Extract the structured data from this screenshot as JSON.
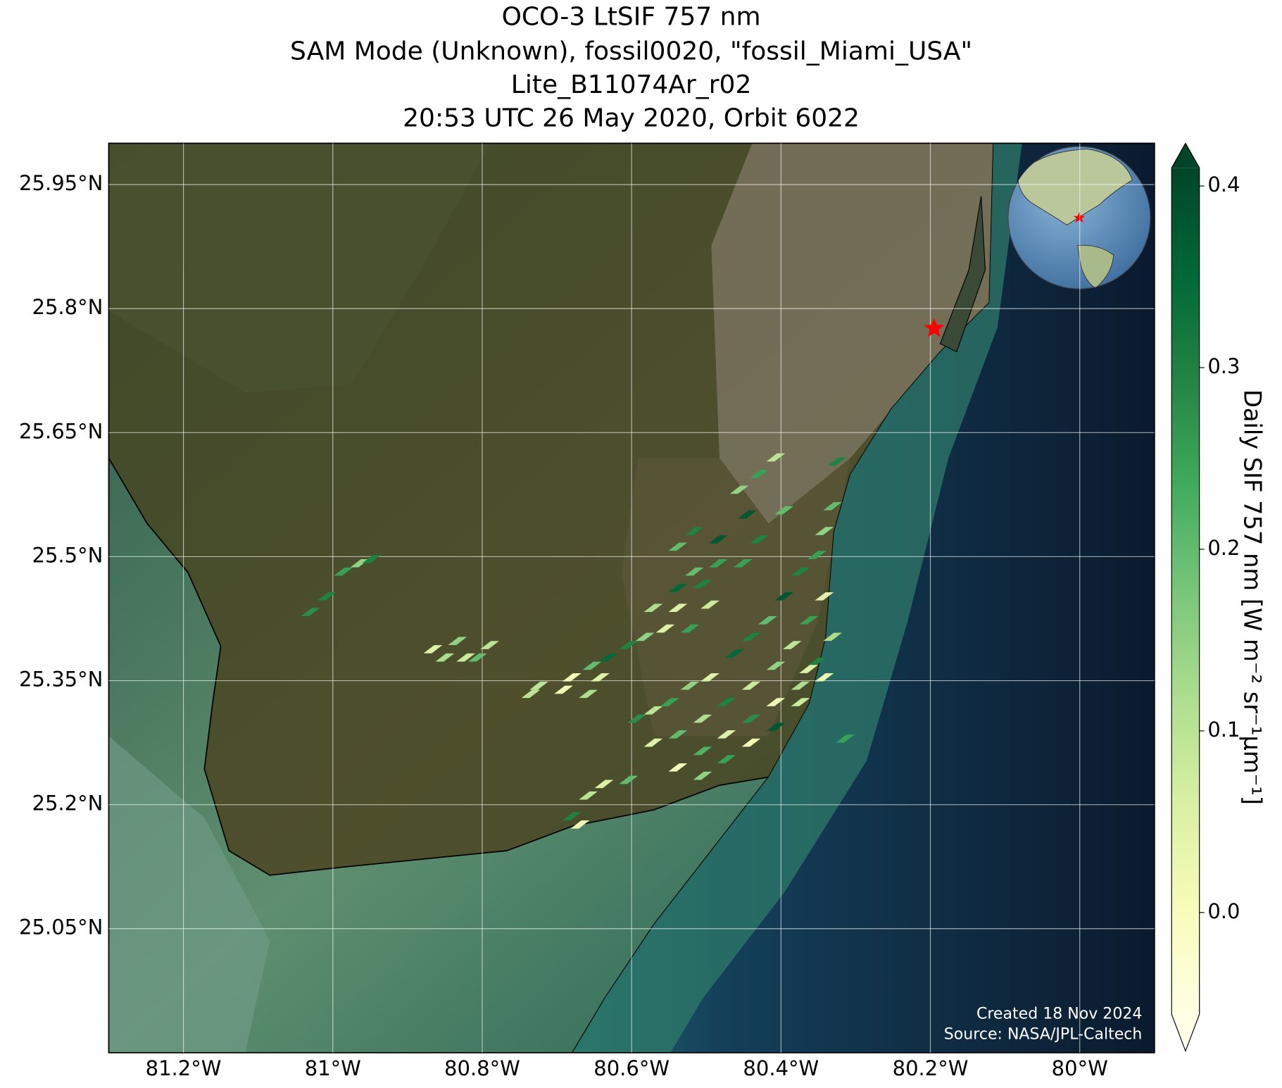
{
  "chart_data": {
    "type": "map",
    "title_lines": [
      "OCO-3 LtSIF 757 nm",
      "SAM Mode (Unknown), fossil0020, \"fossil_Miami_USA\"",
      "Lite_B11074Ar_r02",
      "20:53 UTC 26 May 2020, Orbit 6022"
    ],
    "xlim": [
      -81.3,
      -79.9
    ],
    "ylim": [
      24.9,
      26.0
    ],
    "xticks": [
      {
        "value": -81.2,
        "label": "81.2°W"
      },
      {
        "value": -81.0,
        "label": "81°W"
      },
      {
        "value": -80.8,
        "label": "80.8°W"
      },
      {
        "value": -80.6,
        "label": "80.6°W"
      },
      {
        "value": -80.4,
        "label": "80.4°W"
      },
      {
        "value": -80.2,
        "label": "80.2°W"
      },
      {
        "value": -80.0,
        "label": "80°W"
      }
    ],
    "yticks": [
      {
        "value": 25.05,
        "label": "25.05°N"
      },
      {
        "value": 25.2,
        "label": "25.2°N"
      },
      {
        "value": 25.35,
        "label": "25.35°N"
      },
      {
        "value": 25.5,
        "label": "25.5°N"
      },
      {
        "value": 25.65,
        "label": "25.65°N"
      },
      {
        "value": 25.8,
        "label": "25.8°N"
      },
      {
        "value": 25.95,
        "label": "25.95°N"
      }
    ],
    "grid": true,
    "colorbar": {
      "label": "Daily SIF 757 nm [W m⁻² sr⁻¹µm⁻¹]",
      "cmap": "YlGn",
      "clim": [
        -0.056,
        0.41
      ],
      "ticks": [
        {
          "value": 0,
          "label": "0.0"
        },
        0.1,
        0.2,
        0.3,
        0.4
      ]
    },
    "soundings": {
      "lon": [
        -80.986,
        -80.964,
        -81.008,
        -81.03,
        -80.948,
        -80.866,
        -80.833,
        -80.79,
        -80.806,
        -80.85,
        -80.822,
        -80.724,
        -80.691,
        -80.658,
        -80.68,
        -80.642,
        -80.735,
        -80.653,
        -80.631,
        -80.604,
        -80.582,
        -80.555,
        -80.522,
        -80.571,
        -80.538,
        -80.505,
        -80.538,
        -80.495,
        -80.516,
        -80.484,
        -80.538,
        -80.516,
        -80.484,
        -80.451,
        -80.429,
        -80.396,
        -80.456,
        -80.429,
        -80.407,
        -80.445,
        -80.325,
        -80.593,
        -80.571,
        -80.549,
        -80.522,
        -80.495,
        -80.462,
        -80.44,
        -80.418,
        -80.396,
        -80.374,
        -80.352,
        -80.342,
        -80.331,
        -80.571,
        -80.538,
        -80.505,
        -80.473,
        -80.44,
        -80.407,
        -80.385,
        -80.363,
        -80.342,
        -80.538,
        -80.505,
        -80.473,
        -80.44,
        -80.407,
        -80.374,
        -80.352,
        -80.331,
        -80.505,
        -80.473,
        -80.44,
        -80.407,
        -80.374,
        -80.342,
        -80.363,
        -80.658,
        -80.637,
        -80.68,
        -80.669,
        -80.604,
        -80.314
      ],
      "lat": [
        25.482,
        25.492,
        25.452,
        25.433,
        25.497,
        25.388,
        25.398,
        25.393,
        25.378,
        25.378,
        25.378,
        25.344,
        25.339,
        25.334,
        25.354,
        25.354,
        25.334,
        25.368,
        25.378,
        25.393,
        25.403,
        25.413,
        25.413,
        25.438,
        25.462,
        25.467,
        25.438,
        25.442,
        25.482,
        25.492,
        25.512,
        25.531,
        25.521,
        25.492,
        25.521,
        25.556,
        25.581,
        25.6,
        25.62,
        25.551,
        25.615,
        25.304,
        25.314,
        25.324,
        25.344,
        25.354,
        25.383,
        25.403,
        25.423,
        25.452,
        25.482,
        25.502,
        25.531,
        25.561,
        25.275,
        25.285,
        25.304,
        25.324,
        25.344,
        25.368,
        25.393,
        25.423,
        25.452,
        25.245,
        25.265,
        25.285,
        25.304,
        25.324,
        25.344,
        25.373,
        25.403,
        25.235,
        25.255,
        25.275,
        25.294,
        25.324,
        25.354,
        25.364,
        25.211,
        25.225,
        25.186,
        25.176,
        25.23,
        25.28
      ],
      "values": [
        0.25,
        0.15,
        0.3,
        0.28,
        0.3,
        0.05,
        0.15,
        0.1,
        0.2,
        0.12,
        0.08,
        0.1,
        0.02,
        0.12,
        0.0,
        0.05,
        0.1,
        0.2,
        0.35,
        0.3,
        0.15,
        0.05,
        0.25,
        0.12,
        0.35,
        0.3,
        0.05,
        0.08,
        0.2,
        0.25,
        0.2,
        0.3,
        0.38,
        0.25,
        0.3,
        0.2,
        0.15,
        0.25,
        0.1,
        0.38,
        0.3,
        0.28,
        0.1,
        0.25,
        0.15,
        0.05,
        0.35,
        0.3,
        0.2,
        0.38,
        0.3,
        0.25,
        0.15,
        0.2,
        0.05,
        0.2,
        0.12,
        0.3,
        0.08,
        0.15,
        0.1,
        0.25,
        0.05,
        0.0,
        0.22,
        0.05,
        0.28,
        0.02,
        0.12,
        0.3,
        0.12,
        0.15,
        0.25,
        0.0,
        0.38,
        0.08,
        0.02,
        0.05,
        0.1,
        0.05,
        0.3,
        0.02,
        0.2,
        0.25
      ]
    },
    "target": {
      "lon": -80.195,
      "lat": 25.776,
      "color": "#ff0000"
    },
    "annotations": [
      "Created 18 Nov 2024",
      "Source: NASA/JPL-Caltech"
    ]
  }
}
